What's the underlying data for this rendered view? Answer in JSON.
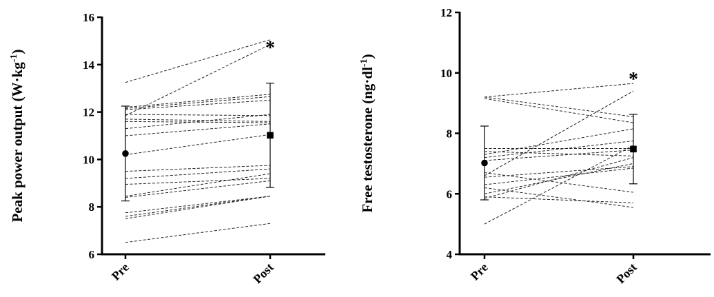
{
  "chart_data": [
    {
      "type": "line",
      "ylabel_main": "Peak power output (W·kg",
      "ylabel_sup": "-1",
      "ylabel_close": ")",
      "categories": [
        "Pre",
        "Post"
      ],
      "ylim": [
        6,
        16
      ],
      "yticks": [
        "6",
        "8",
        "10",
        "12",
        "14",
        "16"
      ],
      "individual_lines": [
        [
          13.25,
          15.05
        ],
        [
          11.85,
          14.85
        ],
        [
          12.2,
          12.75
        ],
        [
          12.15,
          12.65
        ],
        [
          12.1,
          12.5
        ],
        [
          11.9,
          11.85
        ],
        [
          11.7,
          11.6
        ],
        [
          11.6,
          11.55
        ],
        [
          11.3,
          11.9
        ],
        [
          11.0,
          11.5
        ],
        [
          10.2,
          11.05
        ],
        [
          9.5,
          9.75
        ],
        [
          9.2,
          9.6
        ],
        [
          8.95,
          9.2
        ],
        [
          8.45,
          9.4
        ],
        [
          8.4,
          9.1
        ],
        [
          7.75,
          8.45
        ],
        [
          7.6,
          8.45
        ],
        [
          7.5,
          8.45
        ],
        [
          6.5,
          7.3
        ]
      ],
      "mean": [
        10.25,
        11.02
      ],
      "sd": [
        2.0,
        2.2
      ],
      "significance": "*"
    },
    {
      "type": "line",
      "ylabel_main": "Free testosterone (ng·dl",
      "ylabel_sup": "-1",
      "ylabel_close": ")",
      "categories": [
        "Pre",
        "Post"
      ],
      "ylim": [
        4,
        12
      ],
      "yticks": [
        "4",
        "6",
        "8",
        "10",
        "12"
      ],
      "individual_lines": [
        [
          9.2,
          9.65
        ],
        [
          9.2,
          8.55
        ],
        [
          9.15,
          8.35
        ],
        [
          7.5,
          7.5
        ],
        [
          7.4,
          7.25
        ],
        [
          7.3,
          8.15
        ],
        [
          7.2,
          7.75
        ],
        [
          7.1,
          7.45
        ],
        [
          6.7,
          6.05
        ],
        [
          6.6,
          9.4
        ],
        [
          6.55,
          6.9
        ],
        [
          6.3,
          6.85
        ],
        [
          6.2,
          5.55
        ],
        [
          6.0,
          7.0
        ],
        [
          5.9,
          5.7
        ],
        [
          5.85,
          7.2
        ],
        [
          5.0,
          7.6
        ]
      ],
      "mean": [
        7.02,
        7.48
      ],
      "sd": [
        1.22,
        1.15
      ],
      "significance": "*"
    }
  ]
}
